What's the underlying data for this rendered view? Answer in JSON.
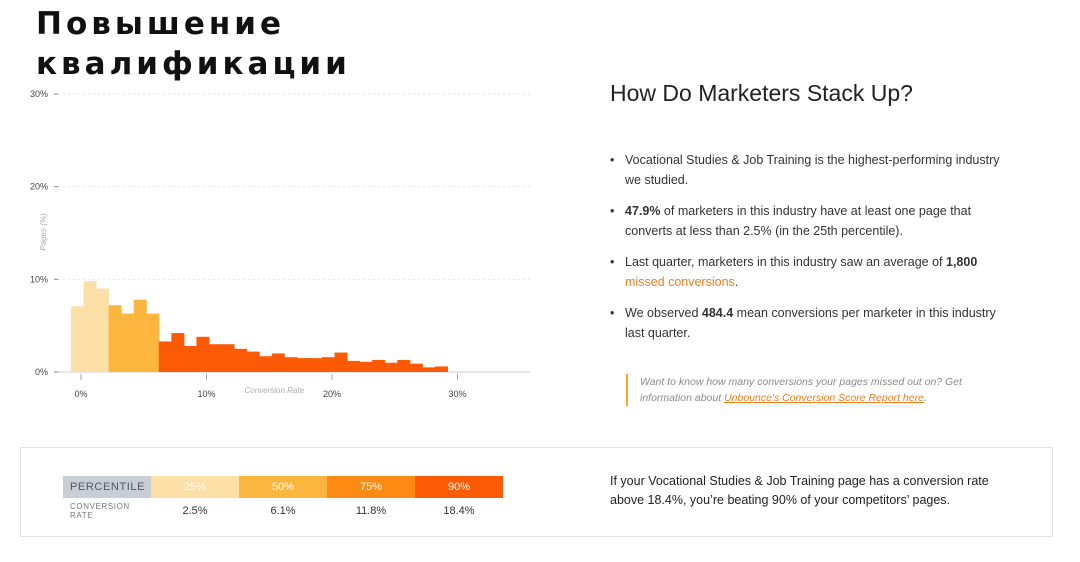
{
  "title": {
    "line1": "Повышение",
    "line2": "квалификации"
  },
  "chart_data": {
    "type": "bar",
    "title": "",
    "xlabel": "Conversion Rate",
    "ylabel": "Pages (%)",
    "ylim": [
      0,
      30
    ],
    "xlim": [
      0,
      30
    ],
    "y_ticks": [
      "0%",
      "10%",
      "20%",
      "30%"
    ],
    "x_ticks": [
      "0%",
      "10%",
      "20%",
      "30%"
    ],
    "grid": true,
    "bin_width": 1,
    "bins_start": [
      -0.8,
      0.2,
      1.2,
      2.2,
      3.2,
      4.2,
      5.2,
      6.2,
      7.2,
      8.2,
      9.2,
      10.2,
      11.2,
      12.2,
      13.2,
      14.2,
      15.2,
      16.2,
      17.2,
      18.2,
      19.2,
      20.2,
      21.2,
      22.2,
      23.2,
      24.2,
      25.2,
      26.2,
      27.2,
      28.2
    ],
    "values": [
      7.1,
      9.8,
      9.0,
      7.2,
      6.3,
      7.8,
      6.3,
      3.3,
      4.2,
      2.8,
      3.8,
      3.0,
      3.0,
      2.5,
      2.2,
      1.7,
      2.0,
      1.6,
      1.5,
      1.5,
      1.6,
      2.1,
      1.2,
      1.1,
      1.3,
      1.0,
      1.3,
      0.9,
      0.5,
      0.6
    ],
    "colors": [
      "#fddfa8",
      "#fddfa8",
      "#fddfa8",
      "#fcb53f",
      "#fcb53f",
      "#fcb53f",
      "#fcb53f",
      "#fc5a04",
      "#fc5a04",
      "#fc5a04",
      "#fc5a04",
      "#fc5a04",
      "#fc5a04",
      "#fc5a04",
      "#fc5a04",
      "#fc5a04",
      "#fc5a04",
      "#fc5a04",
      "#fc5a04",
      "#fc5a04",
      "#fc5a04",
      "#fc5a04",
      "#fc5a04",
      "#fc5a04",
      "#fc5a04",
      "#fc5a04",
      "#fc5a04",
      "#fc5a04",
      "#fc5a04",
      "#fc5a04"
    ]
  },
  "panel": {
    "heading": "How Do Marketers Stack Up?",
    "bullet1": "Vocational Studies & Job Training is the highest-performing industry we studied.",
    "bullet2_value": "47.9%",
    "bullet2_text": " of marketers in this industry have at least one page that converts at less than 2.5% (in the 25th percentile).",
    "bullet3_pre": "Last quarter, marketers in this industry saw an average of ",
    "bullet3_value": "1,800",
    "bullet3_link": "missed conversions",
    "bullet3_post": ".",
    "bullet4_pre": "We observed ",
    "bullet4_value": "484.4",
    "bullet4_post": " mean conversions per marketer in this industry last quarter.",
    "callout_pre": "Want to know how many conversions your pages missed out on? Get information about ",
    "callout_link": "Unbounce's Conversion Score Report here",
    "callout_post": "."
  },
  "percentile_table": {
    "header_label": "PERCENTILE",
    "row_label": "CONVERSION RATE",
    "columns": [
      {
        "percentile": "25%",
        "rate": "2.5%",
        "color": "#fddfa8"
      },
      {
        "percentile": "50%",
        "rate": "6.1%",
        "color": "#fcb53f"
      },
      {
        "percentile": "75%",
        "rate": "11.8%",
        "color": "#fd8a12"
      },
      {
        "percentile": "90%",
        "rate": "18.4%",
        "color": "#fc5a04"
      }
    ]
  },
  "summary": "If your Vocational Studies & Job Training page has a conversion rate above 18.4%, you’re beating 90% of your competitors’ pages."
}
